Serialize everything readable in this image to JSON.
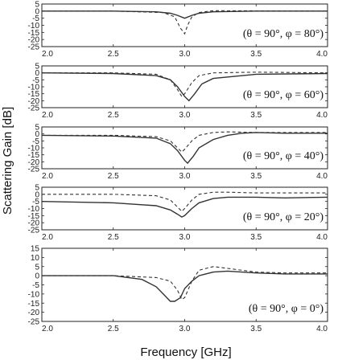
{
  "chart_data": {
    "type": "line",
    "xlabel": "Frequency [GHz]",
    "ylabel": "Scattering Gain [dB]",
    "xlim": [
      2.0,
      4.0
    ],
    "xticks": [
      2.0,
      2.5,
      3.0,
      3.5,
      4.0
    ],
    "xtick_labels": [
      "2.0",
      "2.5",
      "3.0",
      "3.5",
      "4.0"
    ],
    "grid": false,
    "panels": [
      {
        "annotation": "(θ = 90°, φ = 80°)",
        "ylim": [
          -25,
          5
        ],
        "yticks": [
          5,
          0,
          -5,
          -10,
          -15,
          -20,
          -25
        ],
        "series": [
          {
            "style": "solid",
            "x": [
              2.0,
              2.5,
              2.8,
              2.9,
              2.95,
              3.0,
              3.05,
              3.1,
              3.2,
              3.5,
              4.0
            ],
            "y": [
              0,
              0,
              -0.5,
              -1.5,
              -3,
              -5,
              -3,
              -1.5,
              -0.5,
              0,
              0
            ]
          },
          {
            "style": "dashed",
            "x": [
              2.0,
              2.5,
              2.85,
              2.93,
              2.97,
              3.0,
              3.02,
              3.05,
              3.1,
              3.2,
              3.5,
              4.0
            ],
            "y": [
              0,
              0,
              -1,
              -4,
              -12,
              -16,
              -10,
              -4,
              -1,
              0.3,
              0.2,
              0
            ]
          }
        ]
      },
      {
        "annotation": "(θ = 90°, φ = 60°)",
        "ylim": [
          -25,
          5
        ],
        "yticks": [
          5,
          0,
          -5,
          -10,
          -15,
          -20,
          -25
        ],
        "series": [
          {
            "style": "solid",
            "x": [
              2.0,
              2.5,
              2.8,
              2.9,
              2.95,
              3.0,
              3.03,
              3.07,
              3.12,
              3.2,
              3.5,
              4.0
            ],
            "y": [
              0,
              -0.5,
              -2,
              -5,
              -10,
              -17,
              -20,
              -15,
              -8,
              -4,
              -1,
              -0.5
            ]
          },
          {
            "style": "dashed",
            "x": [
              2.0,
              2.5,
              2.8,
              2.9,
              2.95,
              2.98,
              3.0,
              3.05,
              3.1,
              3.2,
              3.5,
              4.0
            ],
            "y": [
              0,
              0,
              -1,
              -5,
              -12,
              -17,
              -15,
              -7,
              -2,
              0,
              0.5,
              0
            ]
          }
        ]
      },
      {
        "annotation": "(θ = 90°, φ = 40°)",
        "ylim": [
          -25,
          5
        ],
        "yticks": [
          5,
          0,
          -5,
          -10,
          -15,
          -20,
          -25
        ],
        "series": [
          {
            "style": "solid",
            "x": [
              2.0,
              2.5,
              2.8,
              2.9,
              2.95,
              3.0,
              3.02,
              3.06,
              3.1,
              3.2,
              3.3,
              3.4,
              3.5,
              3.7,
              4.0
            ],
            "y": [
              -1,
              -1.5,
              -3,
              -7,
              -12,
              -19,
              -21,
              -16,
              -10,
              -4,
              -1,
              0.5,
              1,
              0.5,
              0.5
            ]
          },
          {
            "style": "dashed",
            "x": [
              2.0,
              2.5,
              2.8,
              2.9,
              2.95,
              2.98,
              3.0,
              3.05,
              3.1,
              3.2,
              3.3,
              3.5,
              4.0
            ],
            "y": [
              -1,
              -1,
              -2,
              -5,
              -10,
              -13,
              -11,
              -5,
              -1,
              1,
              1.5,
              1,
              1
            ]
          }
        ]
      },
      {
        "annotation": "(θ = 90°, φ = 20°)",
        "ylim": [
          -25,
          5
        ],
        "yticks": [
          5,
          0,
          -5,
          -10,
          -15,
          -20,
          -25
        ],
        "series": [
          {
            "style": "solid",
            "x": [
              2.0,
              2.5,
              2.8,
              2.9,
              2.95,
              2.98,
              3.0,
              3.05,
              3.1,
              3.2,
              3.3,
              3.5,
              3.7,
              4.0
            ],
            "y": [
              -5,
              -6,
              -8,
              -11,
              -14,
              -16,
              -15,
              -10,
              -6,
              -3,
              -2,
              -2,
              -2.5,
              -2
            ]
          },
          {
            "style": "dashed",
            "x": [
              2.0,
              2.5,
              2.8,
              2.9,
              2.95,
              2.98,
              3.0,
              3.05,
              3.1,
              3.2,
              3.3,
              3.5,
              4.0
            ],
            "y": [
              0,
              0,
              -1,
              -4,
              -9,
              -12,
              -10,
              -4,
              0,
              1.5,
              1.5,
              1,
              1
            ]
          }
        ]
      },
      {
        "annotation": "(θ = 90°, φ = 0°)",
        "ylim": [
          -25,
          15
        ],
        "yticks": [
          15,
          10,
          5,
          0,
          -5,
          -10,
          -15,
          -20,
          -25
        ],
        "series": [
          {
            "style": "solid",
            "x": [
              2.0,
              2.3,
              2.5,
              2.7,
              2.8,
              2.85,
              2.9,
              2.93,
              2.97,
              3.0,
              3.05,
              3.1,
              3.2,
              3.3,
              3.5,
              3.7,
              4.0
            ],
            "y": [
              0,
              0,
              0,
              -2,
              -6,
              -10,
              -14,
              -14,
              -12,
              -7,
              -3,
              0,
              2,
              2.5,
              1.5,
              1,
              1
            ]
          },
          {
            "style": "dashed",
            "x": [
              2.0,
              2.5,
              2.8,
              2.9,
              2.95,
              2.98,
              3.0,
              3.05,
              3.1,
              3.2,
              3.3,
              3.5,
              3.7,
              4.0
            ],
            "y": [
              0,
              0,
              -1,
              -3,
              -8,
              -13,
              -12,
              -3,
              3,
              5,
              4,
              2,
              1.5,
              1.5
            ]
          }
        ]
      }
    ]
  }
}
